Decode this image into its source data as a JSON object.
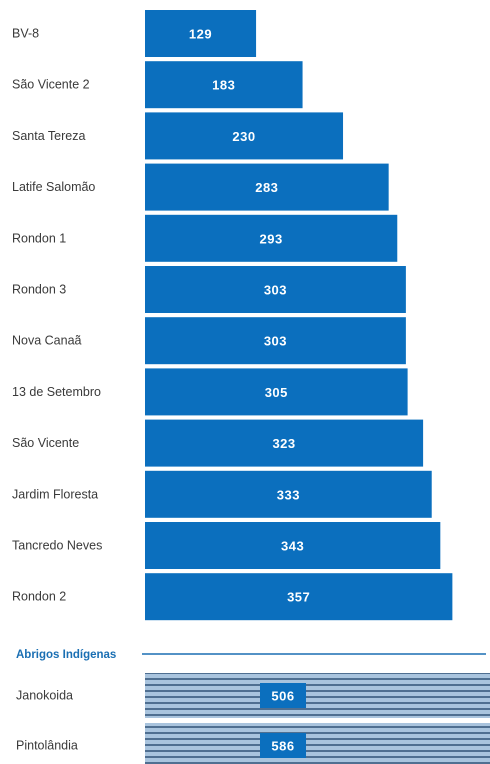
{
  "chart_data": {
    "type": "bar",
    "orientation": "horizontal",
    "categories": [
      "BV-8",
      "São Vicente 2",
      "Santa Tereza",
      "Latife Salomão",
      "Rondon 1",
      "Rondon 3",
      "Nova Canaã",
      "13 de Setembro",
      "São Vicente",
      "Jardim Floresta",
      "Tancredo Neves",
      "Rondon 2"
    ],
    "values": [
      129,
      183,
      230,
      283,
      293,
      303,
      303,
      305,
      323,
      333,
      343,
      357
    ],
    "bar_color": "#0b6fbe",
    "section": {
      "title": "Abrigos Indígenas",
      "categories": [
        "Janokoida",
        "Pintolândia"
      ],
      "values": [
        506,
        586
      ],
      "bar_color": "#a9c4de",
      "stripe_color": "#4f6f91",
      "label_box_color": "#0b6fbe"
    },
    "value_labels": true,
    "grid": false
  }
}
